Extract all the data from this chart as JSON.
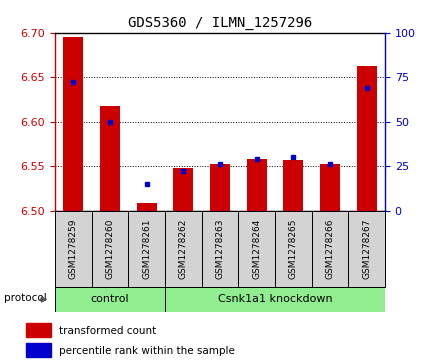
{
  "title": "GDS5360 / ILMN_1257296",
  "samples": [
    "GSM1278259",
    "GSM1278260",
    "GSM1278261",
    "GSM1278262",
    "GSM1278263",
    "GSM1278264",
    "GSM1278265",
    "GSM1278266",
    "GSM1278267"
  ],
  "transformed_counts": [
    6.695,
    6.618,
    6.508,
    6.548,
    6.552,
    6.558,
    6.557,
    6.552,
    6.663
  ],
  "percentile_ranks": [
    72,
    50,
    15,
    22,
    26,
    29,
    30,
    26,
    69
  ],
  "ylim_left": [
    6.5,
    6.7
  ],
  "ylim_right": [
    0,
    100
  ],
  "yticks_left": [
    6.5,
    6.55,
    6.6,
    6.65,
    6.7
  ],
  "yticks_right": [
    0,
    25,
    50,
    75,
    100
  ],
  "bar_color": "#cc0000",
  "dot_color": "#0000cc",
  "bar_width": 0.55,
  "control_samples": 3,
  "control_label": "control",
  "knockdown_label": "Csnk1a1 knockdown",
  "protocol_label": "protocol",
  "legend_bar_label": "transformed count",
  "legend_dot_label": "percentile rank within the sample",
  "sample_box_color": "#d3d3d3",
  "protocol_box_color": "#90ee90",
  "base_value": 6.5
}
